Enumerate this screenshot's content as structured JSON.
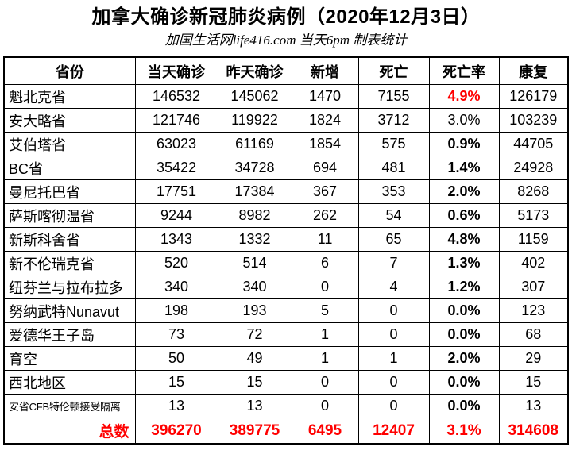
{
  "title": "加拿大确诊新冠肺炎病例（2020年12月3日）",
  "subtitle": "加国生活网life416.com 当天6pm 制表统计",
  "colors": {
    "highlight_red": "#ff0000",
    "text": "#000000",
    "border": "#000000",
    "background": "#ffffff"
  },
  "chart_data": {
    "type": "table",
    "title": "加拿大确诊新冠肺炎病例（2020年12月3日）",
    "columns": [
      "省份",
      "当天确诊",
      "昨天确诊",
      "新增",
      "死亡",
      "死亡率",
      "康复"
    ],
    "rows": [
      {
        "province": "魁北克省",
        "today": 146532,
        "yesterday": 145062,
        "new": 1470,
        "deaths": 7155,
        "death_rate": "4.9%",
        "recovered": 126179,
        "rate_style": "red-bold",
        "small": false
      },
      {
        "province": "安大略省",
        "today": 121746,
        "yesterday": 119922,
        "new": 1824,
        "deaths": 3712,
        "death_rate": "3.0%",
        "recovered": 103239,
        "rate_style": "normal",
        "small": false
      },
      {
        "province": "艾伯塔省",
        "today": 63023,
        "yesterday": 61169,
        "new": 1854,
        "deaths": 575,
        "death_rate": "0.9%",
        "recovered": 44705,
        "rate_style": "bold",
        "small": false
      },
      {
        "province": "BC省",
        "today": 35422,
        "yesterday": 34728,
        "new": 694,
        "deaths": 481,
        "death_rate": "1.4%",
        "recovered": 24928,
        "rate_style": "bold",
        "small": false
      },
      {
        "province": "曼尼托巴省",
        "today": 17751,
        "yesterday": 17384,
        "new": 367,
        "deaths": 353,
        "death_rate": "2.0%",
        "recovered": 8268,
        "rate_style": "bold",
        "small": false
      },
      {
        "province": "萨斯喀彻温省",
        "today": 9244,
        "yesterday": 8982,
        "new": 262,
        "deaths": 54,
        "death_rate": "0.6%",
        "recovered": 5173,
        "rate_style": "bold",
        "small": false
      },
      {
        "province": "新斯科舍省",
        "today": 1343,
        "yesterday": 1332,
        "new": 11,
        "deaths": 65,
        "death_rate": "4.8%",
        "recovered": 1159,
        "rate_style": "bold",
        "small": false
      },
      {
        "province": "新不伦瑞克省",
        "today": 520,
        "yesterday": 514,
        "new": 6,
        "deaths": 7,
        "death_rate": "1.3%",
        "recovered": 402,
        "rate_style": "bold",
        "small": false
      },
      {
        "province": "纽芬兰与拉布拉多",
        "today": 340,
        "yesterday": 340,
        "new": 0,
        "deaths": 4,
        "death_rate": "1.2%",
        "recovered": 307,
        "rate_style": "bold",
        "small": false
      },
      {
        "province": "努纳武特Nunavut",
        "today": 198,
        "yesterday": 193,
        "new": 5,
        "deaths": 0,
        "death_rate": "0.0%",
        "recovered": 123,
        "rate_style": "bold",
        "small": false
      },
      {
        "province": "爱德华王子岛",
        "today": 73,
        "yesterday": 72,
        "new": 1,
        "deaths": 0,
        "death_rate": "0.0%",
        "recovered": 68,
        "rate_style": "bold",
        "small": false
      },
      {
        "province": "育空",
        "today": 50,
        "yesterday": 49,
        "new": 1,
        "deaths": 1,
        "death_rate": "2.0%",
        "recovered": 29,
        "rate_style": "bold",
        "small": false
      },
      {
        "province": "西北地区",
        "today": 15,
        "yesterday": 15,
        "new": 0,
        "deaths": 0,
        "death_rate": "0.0%",
        "recovered": 15,
        "rate_style": "bold",
        "small": false
      },
      {
        "province": "安省CFB特伦顿接受隔离",
        "today": 13,
        "yesterday": 13,
        "new": 0,
        "deaths": 0,
        "death_rate": "0.0%",
        "recovered": 13,
        "rate_style": "bold",
        "small": true
      }
    ],
    "total": {
      "label": "总数",
      "today": 396270,
      "yesterday": 389775,
      "new": 6495,
      "deaths": 12407,
      "death_rate": "3.1%",
      "recovered": 314608
    }
  }
}
